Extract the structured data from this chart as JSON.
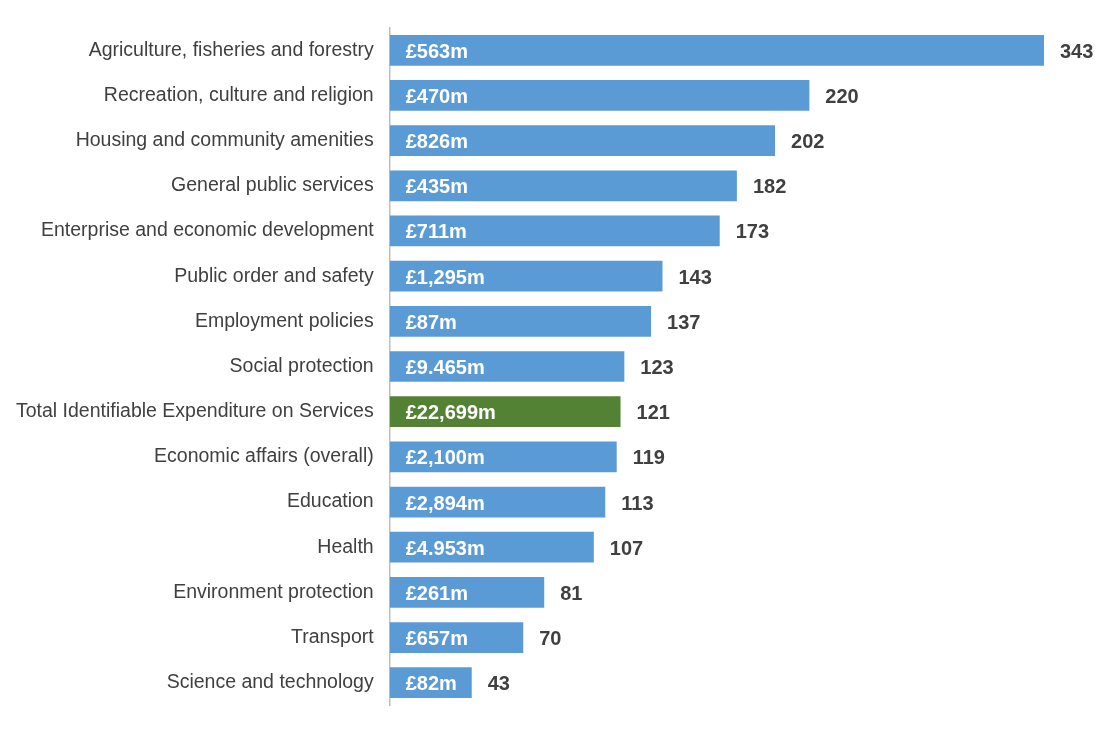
{
  "chart_data": {
    "type": "bar",
    "orientation": "horizontal",
    "categories": [
      "Agriculture, fisheries and forestry",
      "Recreation, culture and religion",
      "Housing and community amenities",
      "General public services",
      "Enterprise and economic development",
      "Public order and safety",
      "Employment policies",
      "Social protection",
      "Total Identifiable Expenditure on Services",
      "Economic affairs (overall)",
      "Education",
      "Health",
      "Environment protection",
      "Transport",
      "Science and technology"
    ],
    "values": [
      343,
      220,
      202,
      182,
      173,
      143,
      137,
      123,
      121,
      119,
      113,
      107,
      81,
      70,
      43
    ],
    "colors": [
      "#5b9bd5",
      "#5b9bd5",
      "#5b9bd5",
      "#5b9bd5",
      "#5b9bd5",
      "#5b9bd5",
      "#5b9bd5",
      "#5b9bd5",
      "#548235",
      "#5b9bd5",
      "#5b9bd5",
      "#5b9bd5",
      "#5b9bd5",
      "#5b9bd5",
      "#5b9bd5"
    ],
    "data_labels": true,
    "grid": false,
    "legend": false,
    "tick_labels": "y",
    "annotations": [
      {
        "text": "£563m",
        "y": "Agriculture, fisheries and forestry"
      },
      {
        "text": "£470m",
        "y": "Recreation, culture and religion"
      },
      {
        "text": "£826m",
        "y": "Housing and community amenities"
      },
      {
        "text": "£435m",
        "y": "General public services"
      },
      {
        "text": "£711m",
        "y": "Enterprise and economic development"
      },
      {
        "text": "£1,295m",
        "y": "Public order and safety"
      },
      {
        "text": "£87m",
        "y": "Employment policies"
      },
      {
        "text": "£9.465m",
        "y": "Social protection"
      },
      {
        "text": "£22,699m",
        "y": "Total Identifiable Expenditure on Services"
      },
      {
        "text": "£2,100m",
        "y": "Economic affairs (overall)"
      },
      {
        "text": "£2,894m",
        "y": "Education"
      },
      {
        "text": "£4.953m",
        "y": "Health"
      },
      {
        "text": "£261m",
        "y": "Environment protection"
      },
      {
        "text": "£657m",
        "y": "Transport"
      },
      {
        "text": "£82m",
        "y": "Science and technology"
      }
    ]
  }
}
